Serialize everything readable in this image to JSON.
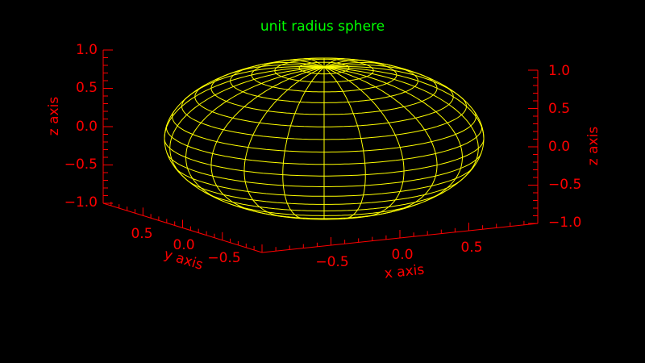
{
  "chart_data": {
    "type": "surface",
    "title": "unit radius sphere",
    "surface": "sphere",
    "radius": 1,
    "mesh": {
      "latitude_lines": 20,
      "longitude_lines": 24
    },
    "x_axis": {
      "label": "x axis",
      "ticks": [
        "−0.5",
        "0.0",
        "0.5"
      ],
      "range": [
        -1,
        1
      ]
    },
    "y_axis": {
      "label": "y axis",
      "ticks": [
        "0.5",
        "0.0",
        "−0.5"
      ],
      "range": [
        -1,
        1
      ]
    },
    "z_axis": {
      "label": "z axis",
      "ticks": [
        "−1.0",
        "−0.5",
        "0.0",
        "0.5",
        "1.0"
      ],
      "range": [
        -1,
        1
      ]
    },
    "z_axis_right": {
      "label": "z axis",
      "ticks": [
        "−1.0",
        "−0.5",
        "0.0",
        "0.5",
        "1.0"
      ],
      "range": [
        -1,
        1
      ]
    },
    "colors": {
      "background": "#000000",
      "axes": "#ff0000",
      "surface": "#ffff00",
      "title": "#00ff00"
    }
  }
}
